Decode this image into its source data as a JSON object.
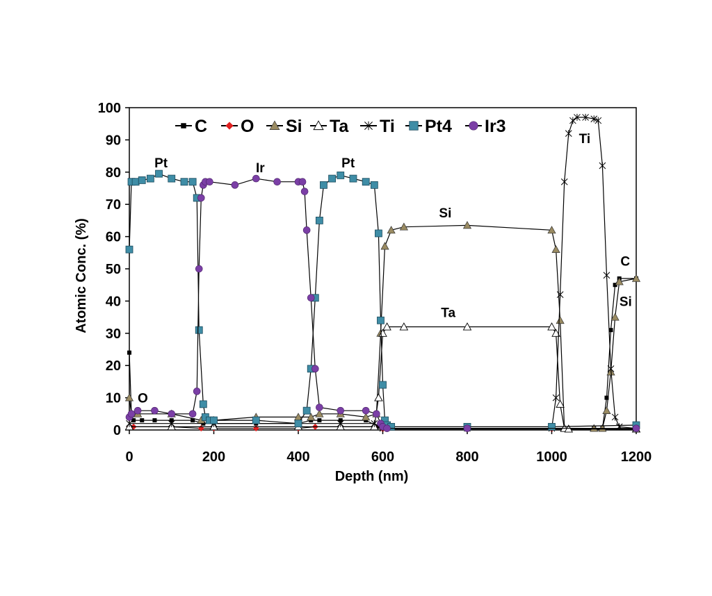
{
  "chart_data": {
    "type": "line",
    "title": "",
    "xlabel": "Depth (nm)",
    "ylabel": "Atomic Conc. (%)",
    "xlim": [
      0,
      1200
    ],
    "ylim": [
      0,
      100
    ],
    "x_ticks": [
      0,
      200,
      400,
      600,
      800,
      1000,
      1200
    ],
    "y_ticks": [
      0,
      10,
      20,
      30,
      40,
      50,
      60,
      70,
      80,
      90,
      100
    ],
    "x_tick_labels": [
      "0",
      "200",
      "400",
      "600",
      "800",
      "1000",
      "1200"
    ],
    "y_tick_labels": [
      "0",
      "10",
      "20",
      "30",
      "40",
      "50",
      "60",
      "70",
      "80",
      "90",
      "100"
    ],
    "grid": false,
    "legend_position": "top-left",
    "series": [
      {
        "name": "C",
        "marker": "small-square",
        "color": "#000000",
        "x": [
          0,
          5,
          10,
          30,
          60,
          100,
          150,
          175,
          200,
          300,
          400,
          430,
          450,
          500,
          560,
          590,
          600,
          800,
          1000,
          1100,
          1120,
          1130,
          1140,
          1150,
          1160,
          1200
        ],
        "y": [
          24,
          5,
          3,
          3,
          3,
          3,
          3,
          2,
          2,
          2,
          2,
          3,
          3,
          3,
          3,
          1,
          0.5,
          0.5,
          0.5,
          0.5,
          0.5,
          10,
          31,
          45,
          47,
          47
        ]
      },
      {
        "name": "O",
        "marker": "diamond",
        "color": "#e02020",
        "x": [
          0,
          10,
          100,
          170,
          200,
          300,
          400,
          440,
          500,
          580,
          600,
          800,
          1000,
          1200
        ],
        "y": [
          1,
          1,
          1,
          0.5,
          0.5,
          0.5,
          0.5,
          1,
          1,
          1,
          0.3,
          0.3,
          0.3,
          0.3
        ]
      },
      {
        "name": "Si",
        "marker": "triangle",
        "color": "#9a8b62",
        "x": [
          0,
          5,
          20,
          100,
          170,
          200,
          300,
          400,
          430,
          450,
          500,
          560,
          585,
          595,
          605,
          620,
          650,
          800,
          1000,
          1010,
          1020,
          1030,
          1100,
          1120,
          1130,
          1140,
          1150,
          1160,
          1200
        ],
        "y": [
          10,
          5,
          5,
          5,
          3,
          3,
          4,
          4,
          4,
          5,
          5,
          4,
          5,
          30,
          57,
          62,
          63,
          63.5,
          62,
          56,
          34,
          0.5,
          0.5,
          0.5,
          6,
          18,
          35,
          46,
          47
        ]
      },
      {
        "name": "Ta",
        "marker": "open-triangle",
        "color": "#000000",
        "x": [
          0,
          100,
          200,
          400,
          500,
          580,
          590,
          600,
          610,
          650,
          800,
          1000,
          1010,
          1020,
          1030,
          1040,
          1200
        ],
        "y": [
          1,
          1,
          1,
          1,
          1,
          1,
          10,
          30,
          32,
          32,
          32,
          32,
          30,
          8,
          0.5,
          0.3,
          0.3
        ]
      },
      {
        "name": "Ti",
        "marker": "star",
        "color": "#000000",
        "x": [
          0,
          100,
          200,
          400,
          500,
          580,
          600,
          800,
          1000,
          1010,
          1020,
          1030,
          1040,
          1050,
          1060,
          1080,
          1100,
          1110,
          1120,
          1130,
          1140,
          1150,
          1160,
          1200
        ],
        "y": [
          2,
          2,
          2,
          2,
          2,
          2,
          0.5,
          0.5,
          0.5,
          10,
          42,
          77,
          92,
          96,
          97,
          97,
          96.5,
          96,
          82,
          48,
          19,
          4,
          1,
          0.5
        ]
      },
      {
        "name": "Pt4",
        "marker": "square",
        "color": "#3f8da6",
        "x": [
          0,
          5,
          15,
          30,
          50,
          70,
          100,
          130,
          150,
          160,
          165,
          175,
          180,
          190,
          200,
          300,
          400,
          420,
          430,
          440,
          450,
          460,
          480,
          500,
          530,
          560,
          580,
          590,
          595,
          600,
          605,
          610,
          620,
          800,
          1000,
          1200
        ],
        "y": [
          56,
          77,
          77,
          77.5,
          78,
          79.5,
          78,
          77,
          77,
          72,
          31,
          8,
          4,
          3,
          3,
          3,
          2,
          6,
          19,
          41,
          65,
          76,
          78,
          79,
          78,
          77,
          76,
          61,
          34,
          14,
          3,
          1.5,
          1,
          1,
          1,
          1.5
        ]
      },
      {
        "name": "Ir3",
        "marker": "circle",
        "color": "#7b3fa6",
        "x": [
          0,
          5,
          20,
          60,
          100,
          150,
          160,
          165,
          170,
          175,
          180,
          190,
          250,
          300,
          350,
          400,
          410,
          415,
          420,
          430,
          440,
          450,
          500,
          560,
          585,
          595,
          600,
          610,
          800,
          1200
        ],
        "y": [
          4,
          5,
          6,
          6,
          5,
          5,
          12,
          50,
          72,
          76,
          77,
          77,
          76,
          78,
          77,
          77,
          77,
          74,
          62,
          41,
          19,
          7,
          6,
          6,
          5,
          2,
          1,
          0.5,
          0.5,
          0.5
        ]
      }
    ],
    "annotations": [
      {
        "text": "Pt",
        "x": 75,
        "y": 81.5
      },
      {
        "text": "Ir",
        "x": 310,
        "y": 80
      },
      {
        "text": "Pt",
        "x": 518,
        "y": 81.5
      },
      {
        "text": "Si",
        "x": 748,
        "y": 66
      },
      {
        "text": "Ta",
        "x": 755,
        "y": 35
      },
      {
        "text": "Ti",
        "x": 1078,
        "y": 89
      },
      {
        "text": "C",
        "x": 1174,
        "y": 51
      },
      {
        "text": "Si",
        "x": 1175,
        "y": 38.5
      },
      {
        "text": "O",
        "x": 32,
        "y": 8.5
      }
    ]
  }
}
